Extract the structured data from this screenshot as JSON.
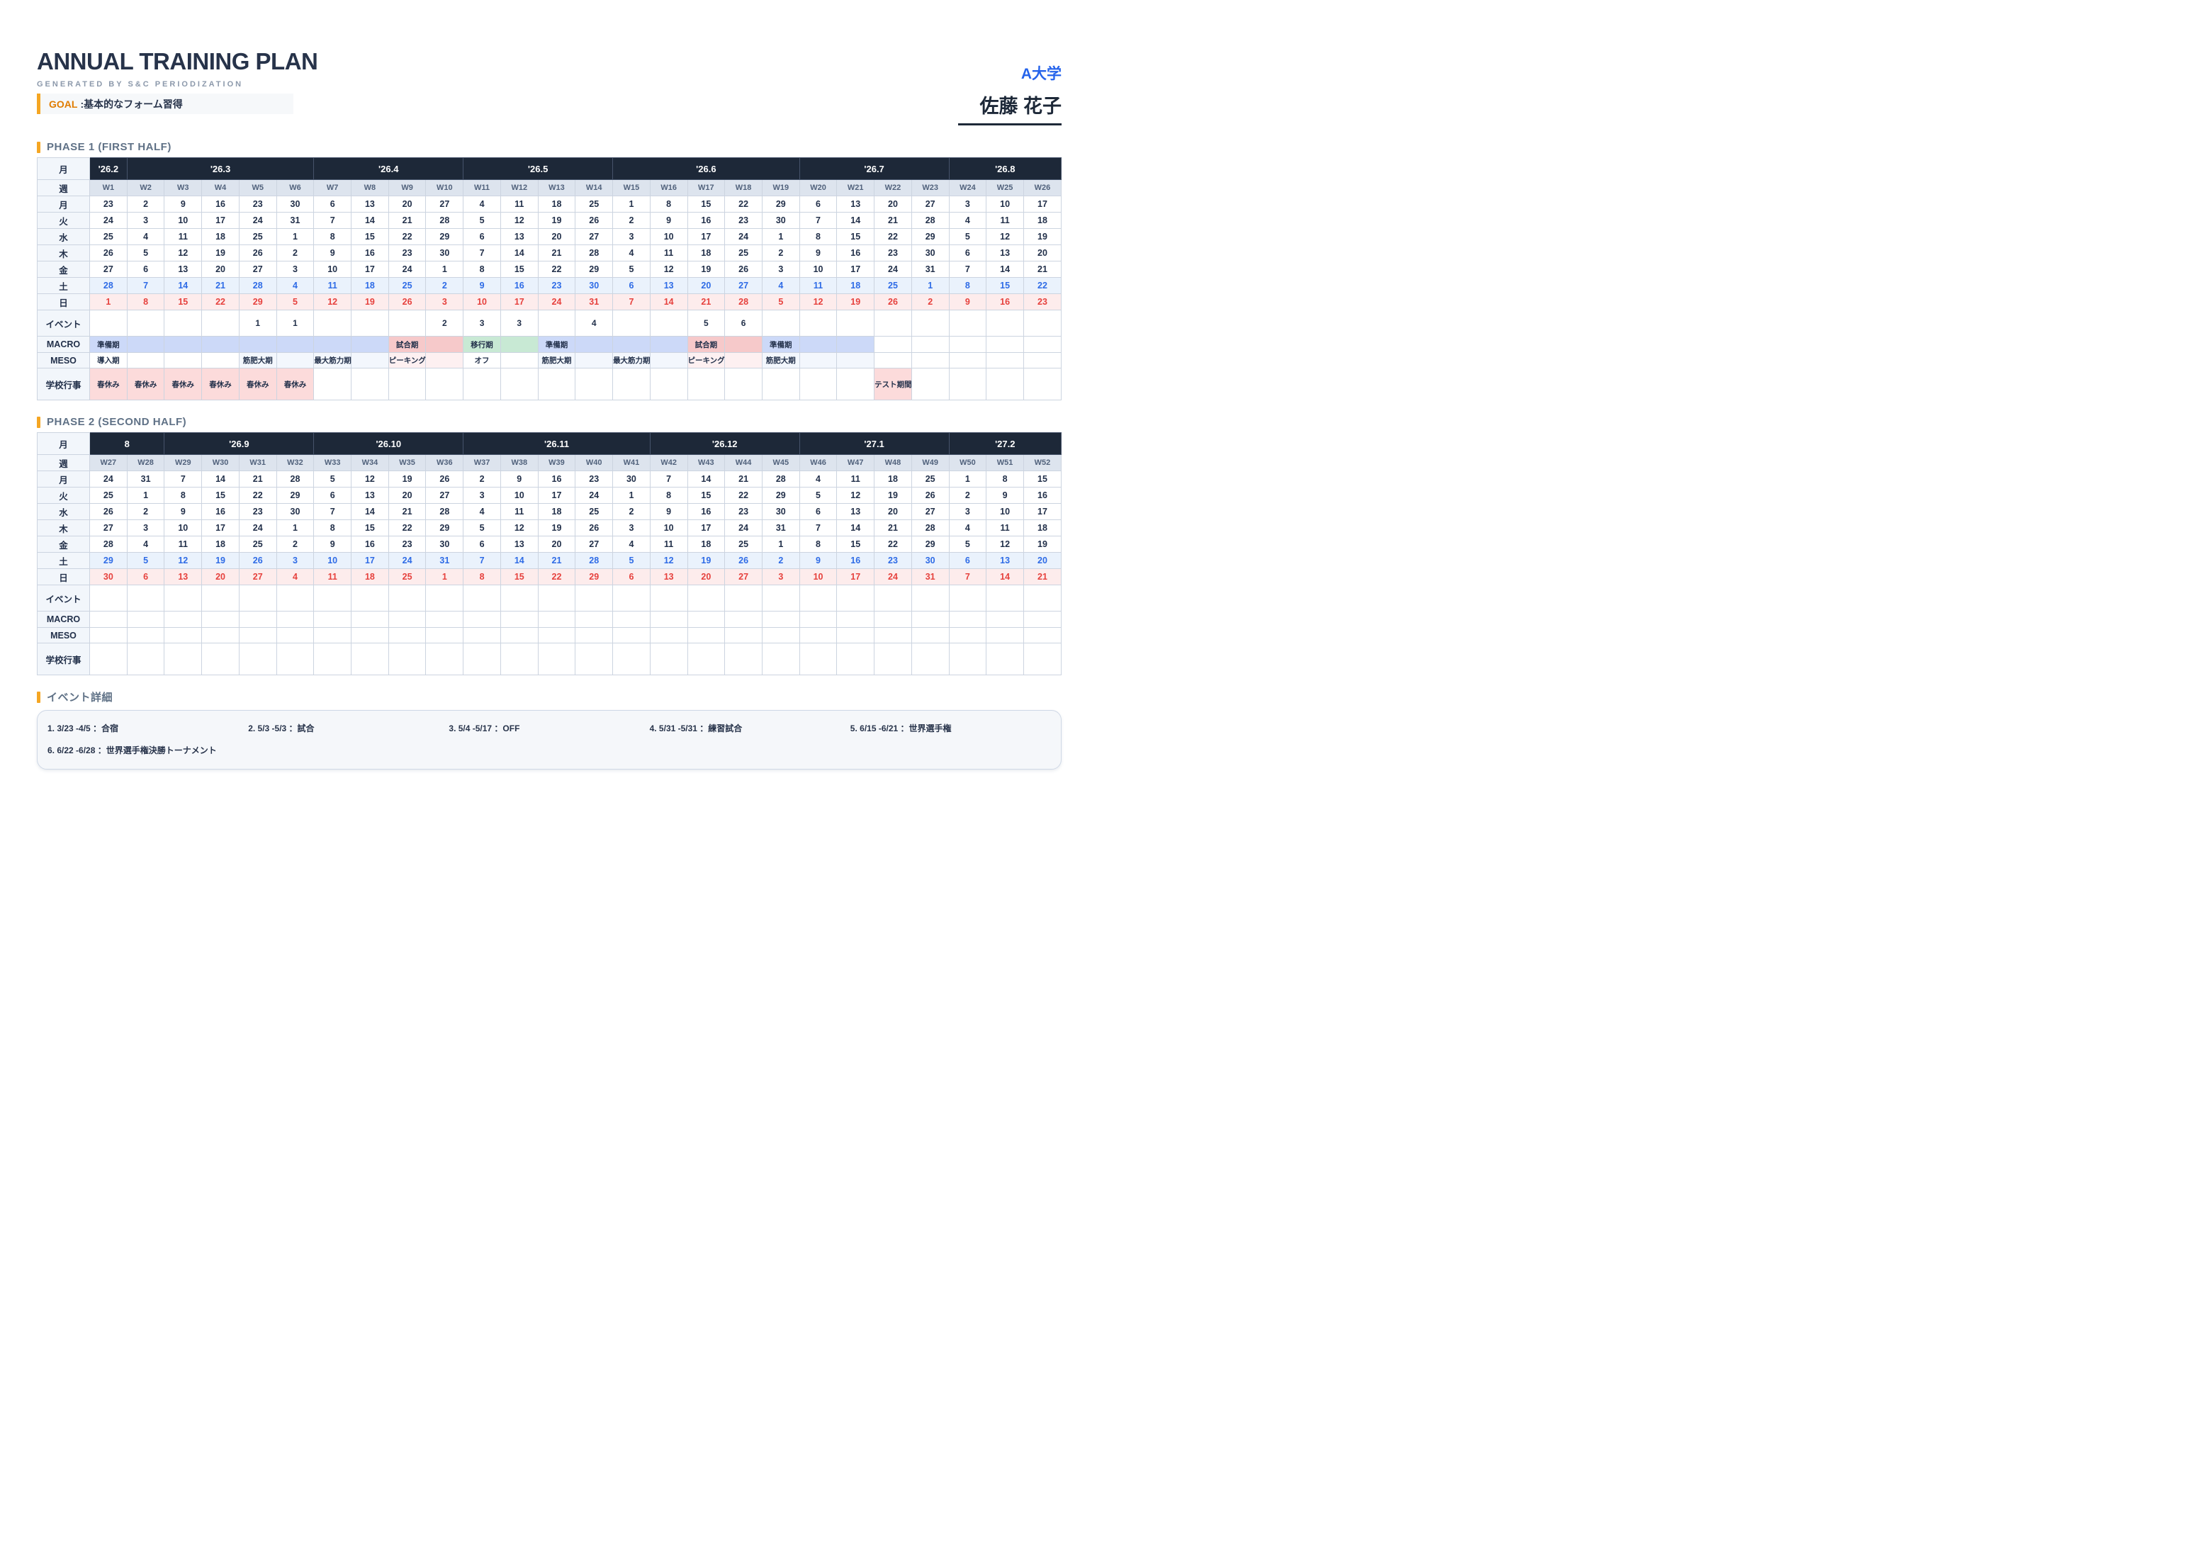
{
  "header": {
    "title": "ANNUAL TRAINING PLAN",
    "subtitle": "GENERATED BY S&C PERIODIZATION",
    "goal_label": "GOAL",
    "goal_text": ":基本的なフォーム習得",
    "team": "A大学",
    "athlete": "佐藤 花子"
  },
  "row_labels": {
    "month": "月",
    "week": "週",
    "event": "イベント",
    "macro": "MACRO",
    "meso": "MESO",
    "school": "学校行事"
  },
  "colors": {
    "accent_orange": "#f5a623",
    "goal_orange": "#e07c00",
    "team_blue": "#2563eb",
    "dark_navy": "#1d2838",
    "macro_prep_blue": "#ccd9f8",
    "macro_comp_pink": "#f6c9ca",
    "macro_transition_green": "#c8e9d4",
    "school_event_pink": "#fcdbdb",
    "saturday_blue": "#2e6be6",
    "sunday_red": "#e6413d"
  },
  "phase1": {
    "title": "PHASE 1 (FIRST HALF)",
    "months": [
      {
        "label": "'26.2",
        "span": 1
      },
      {
        "label": "'26.3",
        "span": 5
      },
      {
        "label": "'26.4",
        "span": 4
      },
      {
        "label": "'26.5",
        "span": 4
      },
      {
        "label": "'26.6",
        "span": 5
      },
      {
        "label": "'26.7",
        "span": 4
      },
      {
        "label": "'26.8",
        "span": 3
      }
    ],
    "weeks": [
      "W1",
      "W2",
      "W3",
      "W4",
      "W5",
      "W6",
      "W7",
      "W8",
      "W9",
      "W10",
      "W11",
      "W12",
      "W13",
      "W14",
      "W15",
      "W16",
      "W17",
      "W18",
      "W19",
      "W20",
      "W21",
      "W22",
      "W23",
      "W24",
      "W25",
      "W26"
    ],
    "day_rows": [
      {
        "label": "月",
        "values": [
          23,
          2,
          9,
          16,
          23,
          30,
          6,
          13,
          20,
          27,
          4,
          11,
          18,
          25,
          1,
          8,
          15,
          22,
          29,
          6,
          13,
          20,
          27,
          3,
          10,
          17
        ]
      },
      {
        "label": "火",
        "values": [
          24,
          3,
          10,
          17,
          24,
          31,
          7,
          14,
          21,
          28,
          5,
          12,
          19,
          26,
          2,
          9,
          16,
          23,
          30,
          7,
          14,
          21,
          28,
          4,
          11,
          18
        ]
      },
      {
        "label": "水",
        "values": [
          25,
          4,
          11,
          18,
          25,
          1,
          8,
          15,
          22,
          29,
          6,
          13,
          20,
          27,
          3,
          10,
          17,
          24,
          1,
          8,
          15,
          22,
          29,
          5,
          12,
          19
        ]
      },
      {
        "label": "木",
        "values": [
          26,
          5,
          12,
          19,
          26,
          2,
          9,
          16,
          23,
          30,
          7,
          14,
          21,
          28,
          4,
          11,
          18,
          25,
          2,
          9,
          16,
          23,
          30,
          6,
          13,
          20
        ]
      },
      {
        "label": "金",
        "values": [
          27,
          6,
          13,
          20,
          27,
          3,
          10,
          17,
          24,
          1,
          8,
          15,
          22,
          29,
          5,
          12,
          19,
          26,
          3,
          10,
          17,
          24,
          31,
          7,
          14,
          21
        ]
      },
      {
        "label": "土",
        "values": [
          28,
          7,
          14,
          21,
          28,
          4,
          11,
          18,
          25,
          2,
          9,
          16,
          23,
          30,
          6,
          13,
          20,
          27,
          4,
          11,
          18,
          25,
          1,
          8,
          15,
          22
        ]
      },
      {
        "label": "日",
        "values": [
          1,
          8,
          15,
          22,
          29,
          5,
          12,
          19,
          26,
          3,
          10,
          17,
          24,
          31,
          7,
          14,
          21,
          28,
          5,
          12,
          19,
          26,
          2,
          9,
          16,
          23
        ]
      }
    ],
    "events": [
      "",
      "",
      "",
      "",
      "1",
      "1",
      "",
      "",
      "",
      "2",
      "3",
      "3",
      "",
      "4",
      "",
      "",
      "5",
      "6",
      "",
      "",
      "",
      "",
      "",
      "",
      "",
      ""
    ],
    "macro": [
      {
        "label": "準備期",
        "span": 8,
        "color": "blue"
      },
      {
        "label": "試合期",
        "span": 2,
        "color": "pink"
      },
      {
        "label": "移行期",
        "span": 2,
        "color": "green"
      },
      {
        "label": "準備期",
        "span": 4,
        "color": "blue"
      },
      {
        "label": "試合期",
        "span": 2,
        "color": "pink"
      },
      {
        "label": "準備期",
        "span": 3,
        "color": "blue"
      },
      {
        "label": "",
        "span": 5,
        "color": "none"
      }
    ],
    "meso": [
      {
        "label": "導入期",
        "span": 4,
        "color": "none"
      },
      {
        "label": "筋肥大期",
        "span": 2,
        "color": "blue"
      },
      {
        "label": "最大筋力期",
        "span": 2,
        "color": "blue"
      },
      {
        "label": "ピーキング",
        "span": 2,
        "color": "pink"
      },
      {
        "label": "オフ",
        "span": 2,
        "color": "none"
      },
      {
        "label": "筋肥大期",
        "span": 2,
        "color": "blue"
      },
      {
        "label": "最大筋力期",
        "span": 2,
        "color": "blue"
      },
      {
        "label": "ピーキング",
        "span": 2,
        "color": "pink"
      },
      {
        "label": "筋肥大期",
        "span": 3,
        "color": "blue"
      },
      {
        "label": "",
        "span": 5,
        "color": "none"
      }
    ],
    "school": [
      "春休み",
      "春休み",
      "春休み",
      "春休み",
      "春休み",
      "春休み",
      "",
      "",
      "",
      "",
      "",
      "",
      "",
      "",
      "",
      "",
      "",
      "",
      "",
      "",
      "",
      "テスト期間",
      "",
      "",
      "",
      ""
    ]
  },
  "phase2": {
    "title": "PHASE 2 (SECOND HALF)",
    "months": [
      {
        "label": "8",
        "span": 2
      },
      {
        "label": "'26.9",
        "span": 4
      },
      {
        "label": "'26.10",
        "span": 4
      },
      {
        "label": "'26.11",
        "span": 5
      },
      {
        "label": "'26.12",
        "span": 4
      },
      {
        "label": "'27.1",
        "span": 4
      },
      {
        "label": "'27.2",
        "span": 3
      }
    ],
    "weeks": [
      "W27",
      "W28",
      "W29",
      "W30",
      "W31",
      "W32",
      "W33",
      "W34",
      "W35",
      "W36",
      "W37",
      "W38",
      "W39",
      "W40",
      "W41",
      "W42",
      "W43",
      "W44",
      "W45",
      "W46",
      "W47",
      "W48",
      "W49",
      "W50",
      "W51",
      "W52"
    ],
    "day_rows": [
      {
        "label": "月",
        "values": [
          24,
          31,
          7,
          14,
          21,
          28,
          5,
          12,
          19,
          26,
          2,
          9,
          16,
          23,
          30,
          7,
          14,
          21,
          28,
          4,
          11,
          18,
          25,
          1,
          8,
          15
        ]
      },
      {
        "label": "火",
        "values": [
          25,
          1,
          8,
          15,
          22,
          29,
          6,
          13,
          20,
          27,
          3,
          10,
          17,
          24,
          1,
          8,
          15,
          22,
          29,
          5,
          12,
          19,
          26,
          2,
          9,
          16
        ]
      },
      {
        "label": "水",
        "values": [
          26,
          2,
          9,
          16,
          23,
          30,
          7,
          14,
          21,
          28,
          4,
          11,
          18,
          25,
          2,
          9,
          16,
          23,
          30,
          6,
          13,
          20,
          27,
          3,
          10,
          17
        ]
      },
      {
        "label": "木",
        "values": [
          27,
          3,
          10,
          17,
          24,
          1,
          8,
          15,
          22,
          29,
          5,
          12,
          19,
          26,
          3,
          10,
          17,
          24,
          31,
          7,
          14,
          21,
          28,
          4,
          11,
          18
        ]
      },
      {
        "label": "金",
        "values": [
          28,
          4,
          11,
          18,
          25,
          2,
          9,
          16,
          23,
          30,
          6,
          13,
          20,
          27,
          4,
          11,
          18,
          25,
          1,
          8,
          15,
          22,
          29,
          5,
          12,
          19
        ]
      },
      {
        "label": "土",
        "values": [
          29,
          5,
          12,
          19,
          26,
          3,
          10,
          17,
          24,
          31,
          7,
          14,
          21,
          28,
          5,
          12,
          19,
          26,
          2,
          9,
          16,
          23,
          30,
          6,
          13,
          20
        ]
      },
      {
        "label": "日",
        "values": [
          30,
          6,
          13,
          20,
          27,
          4,
          11,
          18,
          25,
          1,
          8,
          15,
          22,
          29,
          6,
          13,
          20,
          27,
          3,
          10,
          17,
          24,
          31,
          7,
          14,
          21
        ]
      }
    ],
    "events": [
      "",
      "",
      "",
      "",
      "",
      "",
      "",
      "",
      "",
      "",
      "",
      "",
      "",
      "",
      "",
      "",
      "",
      "",
      "",
      "",
      "",
      "",
      "",
      "",
      "",
      ""
    ],
    "macro": [
      {
        "label": "",
        "span": 26,
        "color": "none"
      }
    ],
    "meso": [
      {
        "label": "",
        "span": 26,
        "color": "none"
      }
    ],
    "school": [
      "",
      "",
      "",
      "",
      "",
      "",
      "",
      "",
      "",
      "",
      "",
      "",
      "",
      "",
      "",
      "",
      "",
      "",
      "",
      "",
      "",
      "",
      "",
      "",
      "",
      ""
    ]
  },
  "event_details": {
    "title": "イベント詳細",
    "items": [
      "1. 3/23 -4/5 ：合宿",
      "2. 5/3 -5/3 ：試合",
      "3. 5/4 -5/17 ：OFF",
      "4. 5/31 -5/31 ：練習試合",
      "5. 6/15 -6/21 ：世界選手権",
      "6. 6/22 -6/28 ：世界選手権決勝トーナメント"
    ]
  }
}
